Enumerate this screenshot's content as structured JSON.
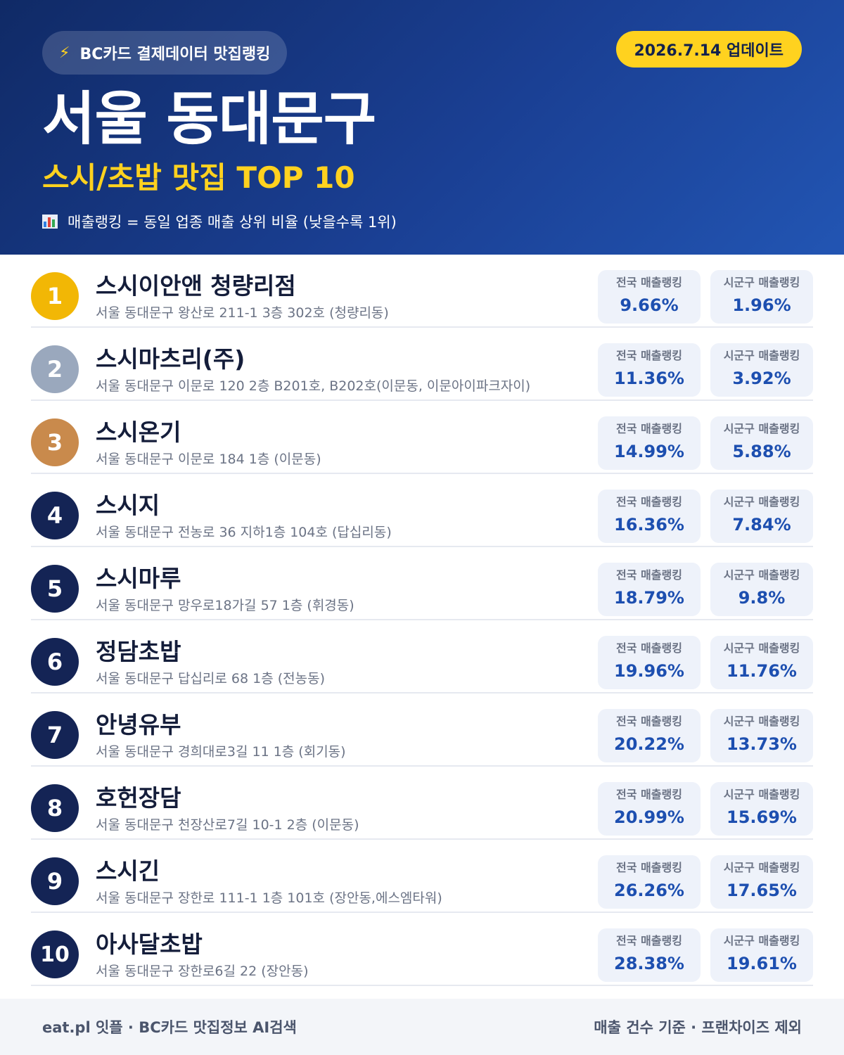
{
  "header": {
    "brand": "BC카드 결제데이터 맛집랭킹",
    "update_date": "2026.7.14 업데이트",
    "region": "서울 동대문구",
    "category": "스시/초밥 맛집 TOP 10",
    "legend": "매출랭킹 = 동일 업종 매출 상위 비율 (낮을수록 1위)",
    "icons": {
      "brand": "lightning-bolt-icon",
      "legend": "bar-chart-icon"
    }
  },
  "labels": {
    "national": "전국 매출랭킹",
    "local": "시군구 매출랭킹"
  },
  "colors": {
    "gold": "#f2b705",
    "silver": "#9aa8bd",
    "bronze": "#c98a4c",
    "navy": "#142455",
    "accent_yellow": "#ffd21f"
  },
  "restaurants": [
    {
      "rank": "1",
      "name": "스시이안앤 청량리점",
      "address": "서울 동대문구 왕산로 211-1 3층 302호 (청량리동)",
      "national": "9.66%",
      "local": "1.96%"
    },
    {
      "rank": "2",
      "name": "스시마츠리(주)",
      "address": "서울 동대문구 이문로 120 2층 B201호, B202호(이문동, 이문아이파크자이)",
      "national": "11.36%",
      "local": "3.92%"
    },
    {
      "rank": "3",
      "name": "스시온기",
      "address": "서울 동대문구 이문로 184 1층 (이문동)",
      "national": "14.99%",
      "local": "5.88%"
    },
    {
      "rank": "4",
      "name": "스시지",
      "address": "서울 동대문구 전농로 36 지하1층 104호 (답십리동)",
      "national": "16.36%",
      "local": "7.84%"
    },
    {
      "rank": "5",
      "name": "스시마루",
      "address": "서울 동대문구 망우로18가길 57 1층 (휘경동)",
      "national": "18.79%",
      "local": "9.8%"
    },
    {
      "rank": "6",
      "name": "정담초밥",
      "address": "서울 동대문구 답십리로 68 1층 (전농동)",
      "national": "19.96%",
      "local": "11.76%"
    },
    {
      "rank": "7",
      "name": "안녕유부",
      "address": "서울 동대문구 경희대로3길 11 1층 (회기동)",
      "national": "20.22%",
      "local": "13.73%"
    },
    {
      "rank": "8",
      "name": "호헌장담",
      "address": "서울 동대문구 천장산로7길 10-1 2층 (이문동)",
      "national": "20.99%",
      "local": "15.69%"
    },
    {
      "rank": "9",
      "name": "스시긴",
      "address": "서울 동대문구 장한로 111-1 1층 101호 (장안동,에스엠타워)",
      "national": "26.26%",
      "local": "17.65%"
    },
    {
      "rank": "10",
      "name": "아사달초밥",
      "address": "서울 동대문구 장한로6길 22 (장안동)",
      "national": "28.38%",
      "local": "19.61%"
    }
  ],
  "footer": {
    "left": "eat.pl 잇플 · BC카드 맛집정보 AI검색",
    "right": "매출 건수 기준 · 프랜차이즈 제외"
  }
}
